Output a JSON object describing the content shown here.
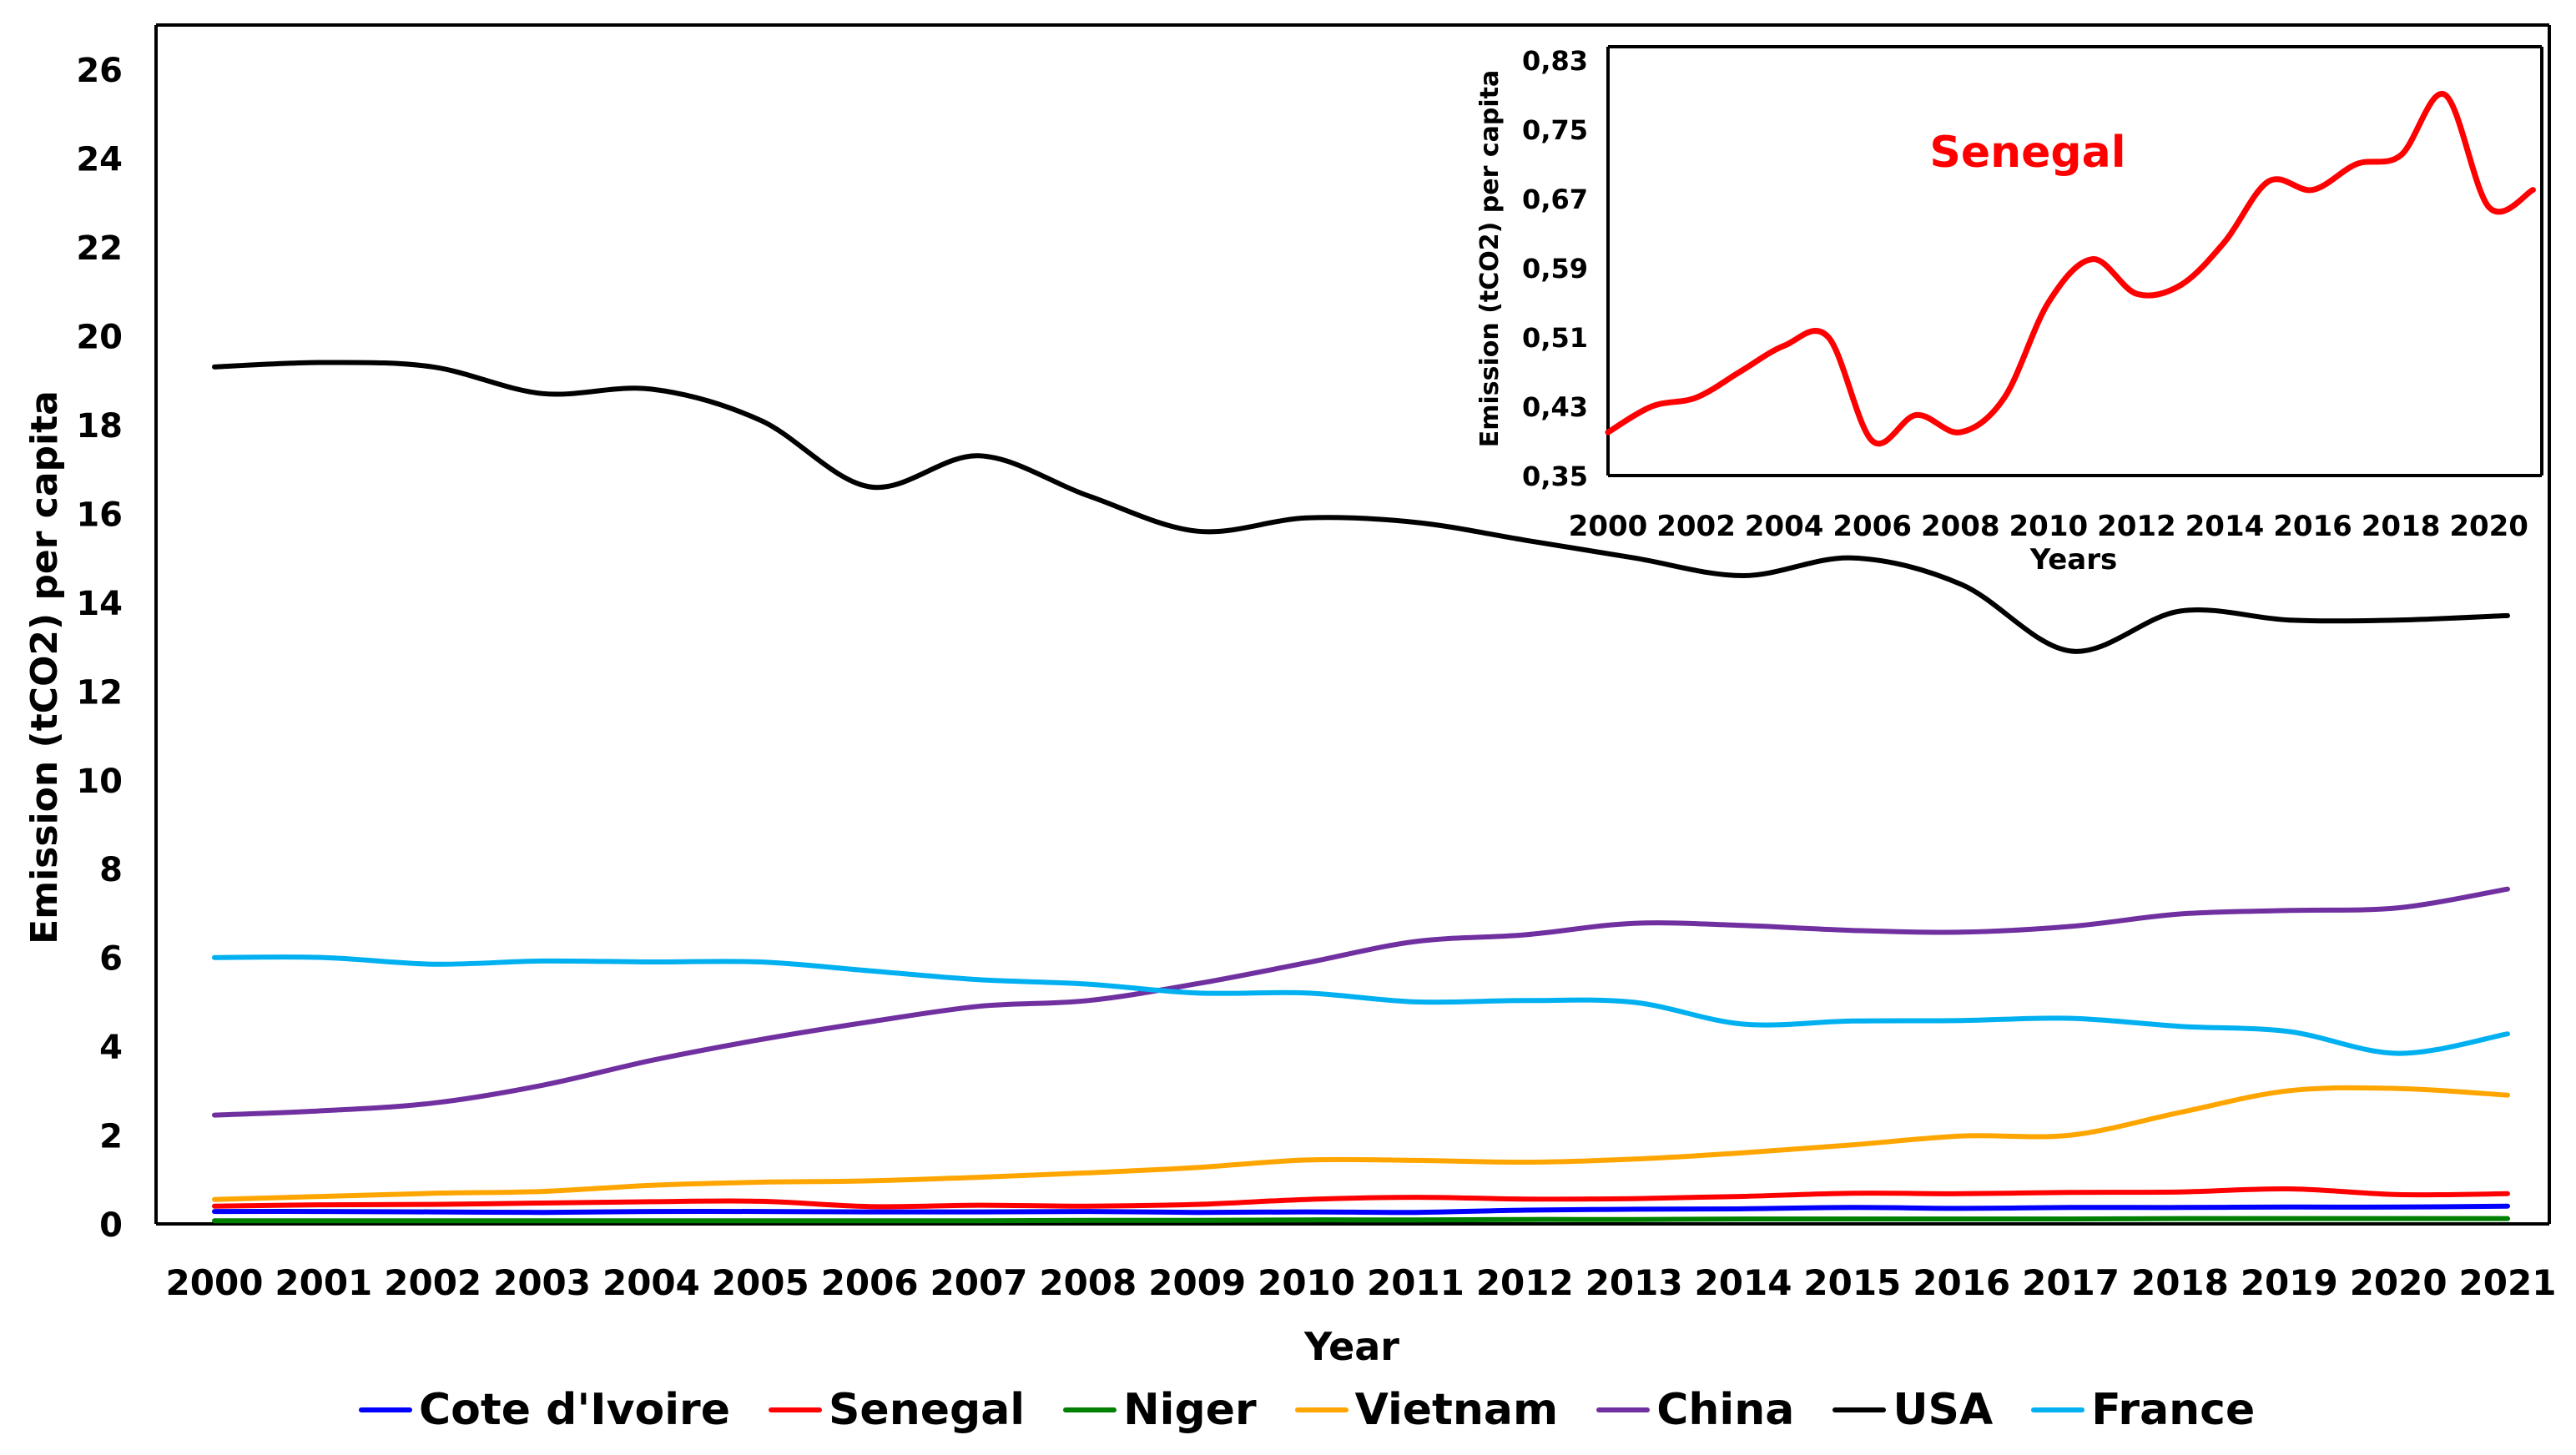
{
  "chart_data": [
    {
      "type": "line",
      "title": "",
      "xlabel": "Year",
      "ylabel": "Emission (tCO2) per capita",
      "ylim": [
        0,
        27
      ],
      "yticks": [
        "0",
        "2",
        "4",
        "6",
        "8",
        "10",
        "12",
        "14",
        "16",
        "18",
        "20",
        "22",
        "24",
        "26"
      ],
      "categories": [
        "2000",
        "2001",
        "2002",
        "2003",
        "2004",
        "2005",
        "2006",
        "2007",
        "2008",
        "2009",
        "2010",
        "2011",
        "2012",
        "2013",
        "2014",
        "2015",
        "2016",
        "2017",
        "2018",
        "2019",
        "2020",
        "2021"
      ],
      "series": [
        {
          "name": "Cote d'Ivoire",
          "color": "#0000ff",
          "values": [
            0.28,
            0.28,
            0.27,
            0.26,
            0.28,
            0.28,
            0.27,
            0.27,
            0.28,
            0.26,
            0.27,
            0.26,
            0.31,
            0.33,
            0.34,
            0.37,
            0.35,
            0.37,
            0.37,
            0.38,
            0.38,
            0.4
          ]
        },
        {
          "name": "Senegal",
          "color": "#ff0000",
          "values": [
            0.4,
            0.43,
            0.44,
            0.47,
            0.5,
            0.51,
            0.39,
            0.42,
            0.4,
            0.44,
            0.55,
            0.6,
            0.56,
            0.57,
            0.62,
            0.69,
            0.68,
            0.71,
            0.72,
            0.79,
            0.66,
            0.68
          ]
        },
        {
          "name": "Niger",
          "color": "#008000",
          "values": [
            0.07,
            0.07,
            0.07,
            0.07,
            0.07,
            0.07,
            0.07,
            0.07,
            0.08,
            0.08,
            0.09,
            0.09,
            0.1,
            0.1,
            0.11,
            0.11,
            0.11,
            0.11,
            0.12,
            0.12,
            0.12,
            0.12
          ]
        },
        {
          "name": "Vietnam",
          "color": "#ffa500",
          "values": [
            0.55,
            0.62,
            0.69,
            0.73,
            0.87,
            0.94,
            0.97,
            1.05,
            1.15,
            1.27,
            1.44,
            1.43,
            1.39,
            1.46,
            1.6,
            1.78,
            1.98,
            2.0,
            2.51,
            3.0,
            3.05,
            2.9
          ]
        },
        {
          "name": "China",
          "color": "#7030a0",
          "values": [
            2.45,
            2.55,
            2.72,
            3.12,
            3.68,
            4.15,
            4.55,
            4.9,
            5.03,
            5.41,
            5.88,
            6.36,
            6.51,
            6.77,
            6.72,
            6.61,
            6.57,
            6.7,
            6.98,
            7.06,
            7.12,
            7.54
          ]
        },
        {
          "name": "USA",
          "color": "#000000",
          "values": [
            19.3,
            19.4,
            19.3,
            18.7,
            18.8,
            18.1,
            16.6,
            17.3,
            16.4,
            15.6,
            15.9,
            15.8,
            15.4,
            15.0,
            14.6,
            15.0,
            14.4,
            12.9,
            13.8,
            13.6,
            13.6,
            13.7
          ]
        },
        {
          "name": "France",
          "color": "#00b0f0",
          "values": [
            6.0,
            6.0,
            5.85,
            5.92,
            5.9,
            5.9,
            5.7,
            5.5,
            5.4,
            5.2,
            5.2,
            5.0,
            5.03,
            4.99,
            4.5,
            4.57,
            4.58,
            4.63,
            4.45,
            4.33,
            3.84,
            4.28
          ]
        }
      ]
    },
    {
      "type": "line",
      "title": "Senegal",
      "xlabel": "Years",
      "ylabel": "Emission (tCO2) per capita",
      "ylim": [
        0.35,
        0.85
      ],
      "yticks": [
        "0,35",
        "0,43",
        "0,51",
        "0,59",
        "0,67",
        "0,75",
        "0,83"
      ],
      "xticks": [
        "2000",
        "2002",
        "2004",
        "2006",
        "2008",
        "2010",
        "2012",
        "2014",
        "2016",
        "2018",
        "2020"
      ],
      "x": [
        2000,
        2001,
        2002,
        2003,
        2004,
        2005,
        2006,
        2007,
        2008,
        2009,
        2010,
        2011,
        2012,
        2013,
        2014,
        2015,
        2016,
        2017,
        2018,
        2019,
        2020,
        2021
      ],
      "series": [
        {
          "name": "Senegal",
          "color": "#ff0000",
          "values": [
            0.4,
            0.43,
            0.44,
            0.47,
            0.5,
            0.51,
            0.39,
            0.42,
            0.4,
            0.44,
            0.55,
            0.6,
            0.56,
            0.57,
            0.62,
            0.69,
            0.68,
            0.71,
            0.72,
            0.79,
            0.66,
            0.68
          ]
        }
      ]
    }
  ]
}
